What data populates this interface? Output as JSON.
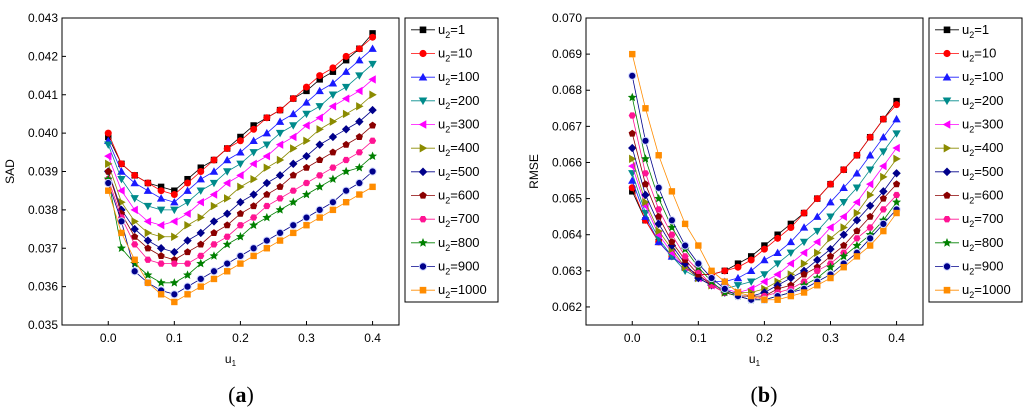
{
  "chart_data": [
    {
      "type": "line",
      "caption": "a",
      "xlabel": "u",
      "xlabel_sub": "1",
      "ylabel": "SAD",
      "xlim": [
        -0.07,
        0.44
      ],
      "ylim": [
        0.035,
        0.043
      ],
      "xticks": [
        "0.0",
        "0.1",
        "0.2",
        "0.3",
        "0.4"
      ],
      "xtick_values": [
        0.0,
        0.1,
        0.2,
        0.3,
        0.4
      ],
      "yticks": [
        "0.035",
        "0.036",
        "0.037",
        "0.038",
        "0.039",
        "0.040",
        "0.041",
        "0.042",
        "0.043"
      ],
      "ytick_values": [
        0.035,
        0.036,
        0.037,
        0.038,
        0.039,
        0.04,
        0.041,
        0.042,
        0.043
      ],
      "x": [
        0.0,
        0.02,
        0.04,
        0.06,
        0.08,
        0.1,
        0.12,
        0.14,
        0.16,
        0.18,
        0.2,
        0.22,
        0.24,
        0.26,
        0.28,
        0.3,
        0.32,
        0.34,
        0.36,
        0.38,
        0.4
      ],
      "series": [
        {
          "name": "u2=1",
          "values": [
            0.0399,
            0.0392,
            0.0389,
            0.0387,
            0.0386,
            0.0385,
            0.0388,
            0.0391,
            0.0393,
            0.0396,
            0.0399,
            0.0402,
            0.0404,
            0.0406,
            0.0409,
            0.0411,
            0.0414,
            0.0416,
            0.0419,
            0.0422,
            0.0426
          ]
        },
        {
          "name": "u2=10",
          "values": [
            0.04,
            0.0392,
            0.0389,
            0.0387,
            0.0385,
            0.0384,
            0.0387,
            0.039,
            0.0393,
            0.0396,
            0.0398,
            0.0401,
            0.0404,
            0.0406,
            0.0409,
            0.0412,
            0.0415,
            0.0417,
            0.042,
            0.0422,
            0.0425
          ]
        },
        {
          "name": "u2=100",
          "values": [
            0.0398,
            0.039,
            0.0387,
            0.0385,
            0.0383,
            0.0382,
            0.0385,
            0.0388,
            0.039,
            0.0393,
            0.0395,
            0.0398,
            0.04,
            0.0403,
            0.0405,
            0.0408,
            0.0411,
            0.0413,
            0.0416,
            0.0419,
            0.0422
          ]
        },
        {
          "name": "u2=200",
          "values": [
            0.0397,
            0.0388,
            0.0383,
            0.0381,
            0.038,
            0.038,
            0.0382,
            0.0385,
            0.0387,
            0.039,
            0.0392,
            0.0395,
            0.0397,
            0.04,
            0.0402,
            0.0405,
            0.0407,
            0.041,
            0.0412,
            0.0415,
            0.0418
          ]
        },
        {
          "name": "u2=300",
          "values": [
            0.0394,
            0.0385,
            0.038,
            0.0377,
            0.0376,
            0.0377,
            0.0379,
            0.0382,
            0.0384,
            0.0387,
            0.0389,
            0.0392,
            0.0394,
            0.0397,
            0.0399,
            0.0402,
            0.0404,
            0.0407,
            0.0409,
            0.0411,
            0.0414
          ]
        },
        {
          "name": "u2=400",
          "values": [
            0.0392,
            0.0382,
            0.0377,
            0.0374,
            0.0373,
            0.0373,
            0.0376,
            0.0378,
            0.0381,
            0.0383,
            0.0386,
            0.0388,
            0.0391,
            0.0393,
            0.0396,
            0.0398,
            0.0401,
            0.0403,
            0.0405,
            0.0407,
            0.041
          ]
        },
        {
          "name": "u2=500",
          "values": [
            0.039,
            0.038,
            0.0375,
            0.0372,
            0.037,
            0.0369,
            0.0372,
            0.0374,
            0.0377,
            0.0379,
            0.0382,
            0.0384,
            0.0387,
            0.0389,
            0.0392,
            0.0394,
            0.0397,
            0.0399,
            0.0401,
            0.0403,
            0.0406
          ]
        },
        {
          "name": "u2=600",
          "values": [
            0.039,
            0.0379,
            0.0373,
            0.037,
            0.0368,
            0.0367,
            0.0369,
            0.0371,
            0.0374,
            0.0376,
            0.0379,
            0.0381,
            0.0384,
            0.0386,
            0.0389,
            0.0391,
            0.0393,
            0.0395,
            0.0397,
            0.0399,
            0.0402
          ]
        },
        {
          "name": "u2=700",
          "values": [
            0.0388,
            0.0378,
            0.0371,
            0.0367,
            0.0366,
            0.0366,
            0.0366,
            0.0368,
            0.0371,
            0.0373,
            0.0376,
            0.0378,
            0.0381,
            0.0383,
            0.0385,
            0.0387,
            0.0389,
            0.0391,
            0.0393,
            0.0395,
            0.0398
          ]
        },
        {
          "name": "u2=800",
          "values": [
            0.0388,
            0.037,
            0.0366,
            0.0363,
            0.0361,
            0.0361,
            0.0363,
            0.0366,
            0.0368,
            0.0371,
            0.0373,
            0.0376,
            0.0378,
            0.038,
            0.0382,
            0.0384,
            0.0386,
            0.0388,
            0.039,
            0.0391,
            0.0394
          ]
        },
        {
          "name": "u2=900",
          "values": [
            0.0387,
            0.0377,
            0.0364,
            0.0361,
            0.0359,
            0.0358,
            0.036,
            0.0362,
            0.0364,
            0.0366,
            0.0368,
            0.037,
            0.0372,
            0.0374,
            0.0376,
            0.0378,
            0.038,
            0.0382,
            0.0385,
            0.0387,
            0.039
          ]
        },
        {
          "name": "u2=1000",
          "values": [
            0.0385,
            0.0374,
            0.0367,
            0.0361,
            0.0358,
            0.0356,
            0.0358,
            0.036,
            0.0362,
            0.0364,
            0.0366,
            0.0368,
            0.037,
            0.0372,
            0.0374,
            0.0376,
            0.0378,
            0.038,
            0.0382,
            0.0384,
            0.0386
          ]
        }
      ]
    },
    {
      "type": "line",
      "caption": "b",
      "xlabel": "u",
      "xlabel_sub": "1",
      "ylabel": "RMSE",
      "xlim": [
        -0.07,
        0.44
      ],
      "ylim": [
        0.0615,
        0.07
      ],
      "xticks": [
        "0.0",
        "0.1",
        "0.2",
        "0.3",
        "0.4"
      ],
      "xtick_values": [
        0.0,
        0.1,
        0.2,
        0.3,
        0.4
      ],
      "yticks": [
        "0.062",
        "0.063",
        "0.064",
        "0.065",
        "0.066",
        "0.067",
        "0.068",
        "0.069",
        "0.070"
      ],
      "ytick_values": [
        0.062,
        0.063,
        0.064,
        0.065,
        0.066,
        0.067,
        0.068,
        0.069,
        0.07
      ],
      "x": [
        0.0,
        0.02,
        0.04,
        0.06,
        0.08,
        0.1,
        0.12,
        0.14,
        0.16,
        0.18,
        0.2,
        0.22,
        0.24,
        0.26,
        0.28,
        0.3,
        0.32,
        0.34,
        0.36,
        0.38,
        0.4
      ],
      "series": [
        {
          "name": "u2=1",
          "values": [
            0.0652,
            0.0644,
            0.0638,
            0.0634,
            0.0631,
            0.0629,
            0.0629,
            0.063,
            0.0632,
            0.0634,
            0.0637,
            0.064,
            0.0643,
            0.0646,
            0.065,
            0.0654,
            0.0658,
            0.0662,
            0.0667,
            0.0672,
            0.0677
          ]
        },
        {
          "name": "u2=10",
          "values": [
            0.0653,
            0.0644,
            0.0638,
            0.0634,
            0.0631,
            0.0629,
            0.0629,
            0.063,
            0.0631,
            0.0633,
            0.0636,
            0.0639,
            0.0642,
            0.0646,
            0.065,
            0.0654,
            0.0658,
            0.0662,
            0.0667,
            0.0672,
            0.0676
          ]
        },
        {
          "name": "u2=100",
          "values": [
            0.0655,
            0.0645,
            0.0638,
            0.0634,
            0.0631,
            0.0628,
            0.0627,
            0.0627,
            0.0628,
            0.063,
            0.0633,
            0.0635,
            0.0638,
            0.0642,
            0.0645,
            0.0649,
            0.0653,
            0.0657,
            0.0662,
            0.0667,
            0.0672
          ]
        },
        {
          "name": "u2=200",
          "values": [
            0.0657,
            0.0646,
            0.0639,
            0.0634,
            0.063,
            0.0628,
            0.0626,
            0.0625,
            0.0626,
            0.0627,
            0.0629,
            0.0632,
            0.0635,
            0.0638,
            0.0641,
            0.0645,
            0.0649,
            0.0653,
            0.0658,
            0.0663,
            0.0668
          ]
        },
        {
          "name": "u2=300",
          "values": [
            0.0659,
            0.0648,
            0.064,
            0.0635,
            0.0631,
            0.0628,
            0.0626,
            0.0625,
            0.0624,
            0.0625,
            0.0627,
            0.0629,
            0.0632,
            0.0635,
            0.0638,
            0.0642,
            0.0645,
            0.0649,
            0.0654,
            0.0659,
            0.0664
          ]
        },
        {
          "name": "u2=400",
          "values": [
            0.0661,
            0.0649,
            0.0641,
            0.0636,
            0.0631,
            0.0628,
            0.0626,
            0.0624,
            0.0624,
            0.0624,
            0.0625,
            0.0627,
            0.0629,
            0.0632,
            0.0635,
            0.0639,
            0.0642,
            0.0646,
            0.0651,
            0.0656,
            0.0661
          ]
        },
        {
          "name": "u2=500",
          "values": [
            0.0664,
            0.0651,
            0.0643,
            0.0637,
            0.0632,
            0.0628,
            0.0626,
            0.0624,
            0.0623,
            0.0623,
            0.0624,
            0.0626,
            0.0628,
            0.063,
            0.0633,
            0.0636,
            0.064,
            0.0644,
            0.0648,
            0.0652,
            0.0657
          ]
        },
        {
          "name": "u2=600",
          "values": [
            0.0668,
            0.0654,
            0.0645,
            0.0638,
            0.0633,
            0.0629,
            0.0626,
            0.0624,
            0.0623,
            0.0623,
            0.0623,
            0.0625,
            0.0626,
            0.0629,
            0.0631,
            0.0634,
            0.0637,
            0.0641,
            0.0645,
            0.065,
            0.0654
          ]
        },
        {
          "name": "u2=700",
          "values": [
            0.0673,
            0.0657,
            0.0647,
            0.064,
            0.0634,
            0.063,
            0.0626,
            0.0624,
            0.0623,
            0.0622,
            0.0623,
            0.0624,
            0.0625,
            0.0627,
            0.063,
            0.0632,
            0.0635,
            0.0639,
            0.0642,
            0.0647,
            0.0651
          ]
        },
        {
          "name": "u2=800",
          "values": [
            0.0678,
            0.0661,
            0.065,
            0.0642,
            0.0636,
            0.0631,
            0.0627,
            0.0624,
            0.0623,
            0.0622,
            0.0622,
            0.0623,
            0.0624,
            0.0626,
            0.0628,
            0.0631,
            0.0634,
            0.0637,
            0.064,
            0.0644,
            0.0649
          ]
        },
        {
          "name": "u2=900",
          "values": [
            0.0684,
            0.0666,
            0.0653,
            0.0644,
            0.0637,
            0.0632,
            0.0628,
            0.0625,
            0.0623,
            0.0622,
            0.0622,
            0.0623,
            0.0624,
            0.0625,
            0.0627,
            0.0629,
            0.0632,
            0.0635,
            0.0639,
            0.0643,
            0.0647
          ]
        },
        {
          "name": "u2=1000",
          "values": [
            0.069,
            0.0675,
            0.0662,
            0.0652,
            0.0643,
            0.0637,
            0.063,
            0.0627,
            0.0624,
            0.0623,
            0.0622,
            0.0622,
            0.0623,
            0.0624,
            0.0626,
            0.0628,
            0.0631,
            0.0634,
            0.0637,
            0.0641,
            0.0646
          ]
        }
      ]
    }
  ],
  "series_style": {
    "colors": [
      "#000000",
      "#ff0000",
      "#1a1aff",
      "#008b8b",
      "#ff00ff",
      "#8b8b00",
      "#00008b",
      "#8b0000",
      "#ff1493",
      "#008000",
      "#00008b",
      "#ff8c00"
    ],
    "markers": [
      "square",
      "circle",
      "triangle-up",
      "triangle-down",
      "triangle-left",
      "triangle-right",
      "diamond",
      "pentagon",
      "hexagon",
      "star",
      "sphere",
      "square"
    ]
  }
}
